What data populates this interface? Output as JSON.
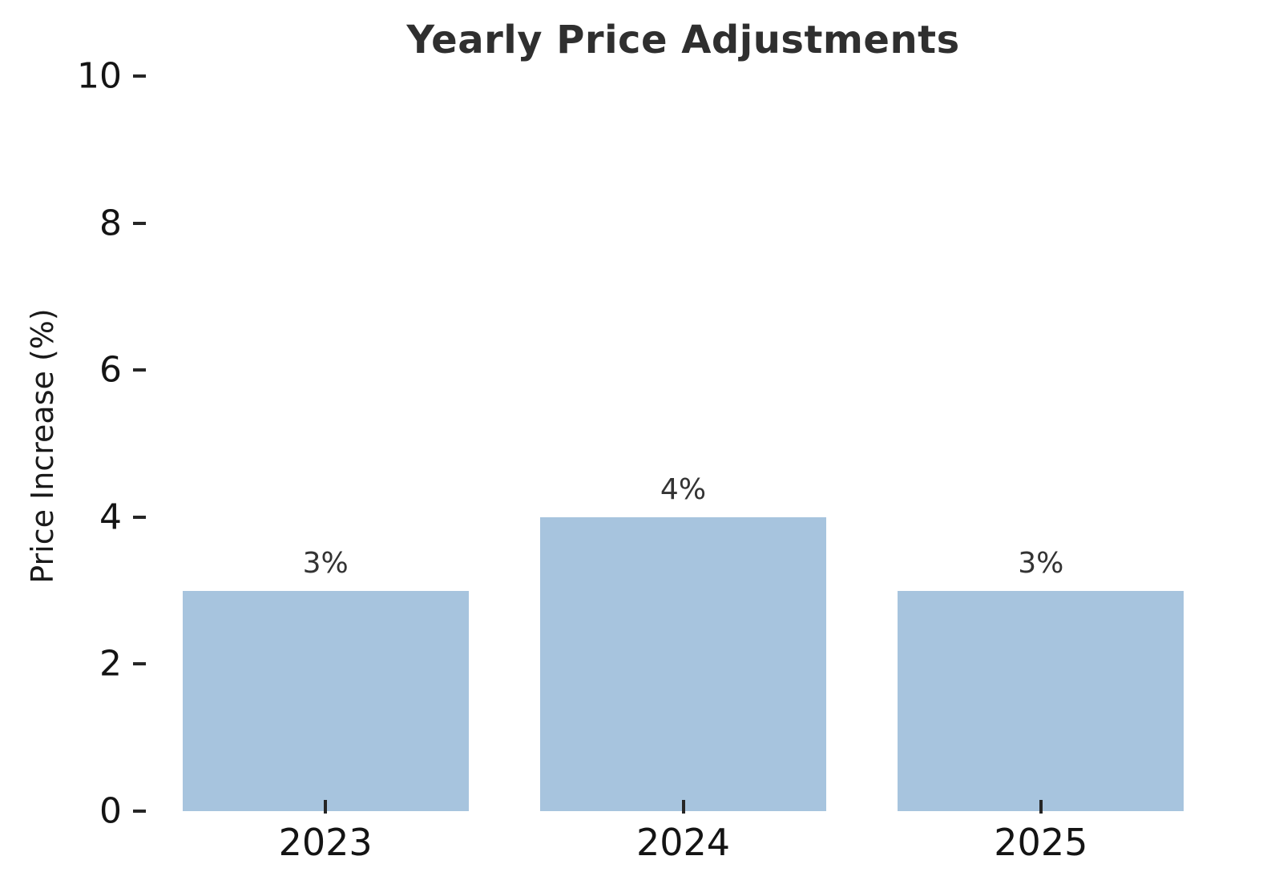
{
  "chart_data": {
    "type": "bar",
    "title": "Yearly Price Adjustments",
    "xlabel": "",
    "ylabel": "Price Increase (%)",
    "categories": [
      "2023",
      "2024",
      "2025"
    ],
    "values": [
      3,
      4,
      3
    ],
    "bar_labels": [
      "3%",
      "4%",
      "3%"
    ],
    "ylim": [
      0,
      10
    ],
    "yticks": [
      0,
      2,
      4,
      6,
      8,
      10
    ],
    "grid": false,
    "legend": false,
    "bar_color": "#a7c4de",
    "title_color": "#2f2f2f",
    "tick_label_color": "#141414",
    "bar_label_color": "#333333"
  }
}
